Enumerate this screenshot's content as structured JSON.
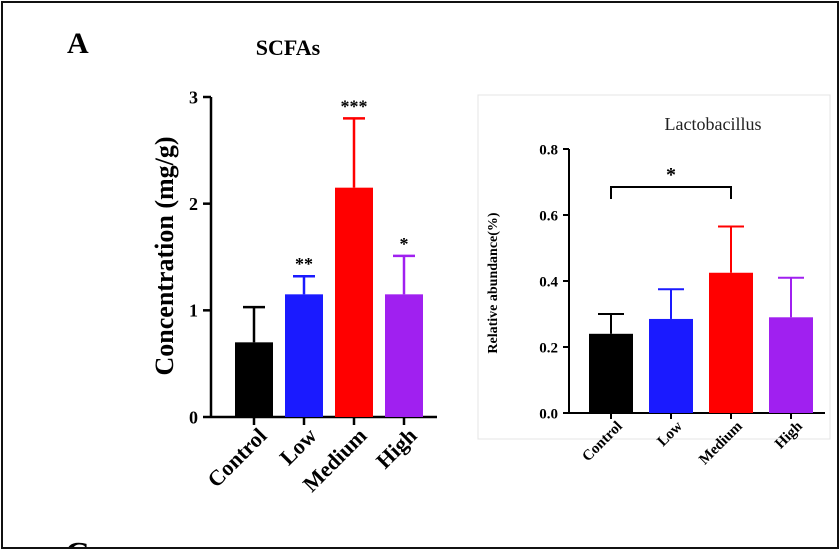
{
  "panel_label": "A",
  "bottom_panel_label": "C",
  "chart_data": [
    {
      "type": "bar",
      "title": "SCFAs",
      "xlabel": "",
      "ylabel": "Concentration (mg/g)",
      "ylim": [
        0,
        3
      ],
      "yticks": [
        0,
        1,
        2,
        3
      ],
      "categories": [
        "Control",
        "Low",
        "Medium",
        "High"
      ],
      "values": [
        0.7,
        1.15,
        2.15,
        1.15
      ],
      "errors": [
        0.33,
        0.17,
        0.65,
        0.36
      ],
      "annotations": [
        "",
        "**",
        "***",
        "*"
      ],
      "colors": [
        "#000000",
        "#1a1aff",
        "#ff0000",
        "#a020f0"
      ],
      "grid": false
    },
    {
      "type": "bar",
      "title": "Lactobacillus",
      "xlabel": "",
      "ylabel": "Relative abundance(%)",
      "ylim": [
        0,
        0.8
      ],
      "yticks": [
        "0.0",
        "0.2",
        "0.4",
        "0.6",
        "0.8"
      ],
      "categories": [
        "Control",
        "Low",
        "Medium",
        "High"
      ],
      "values": [
        0.24,
        0.285,
        0.425,
        0.29
      ],
      "errors": [
        0.06,
        0.09,
        0.14,
        0.12
      ],
      "comparison": {
        "from": "Control",
        "to": "Medium",
        "label": "*"
      },
      "colors": [
        "#000000",
        "#1a1aff",
        "#ff0000",
        "#a020f0"
      ],
      "grid": false
    }
  ]
}
